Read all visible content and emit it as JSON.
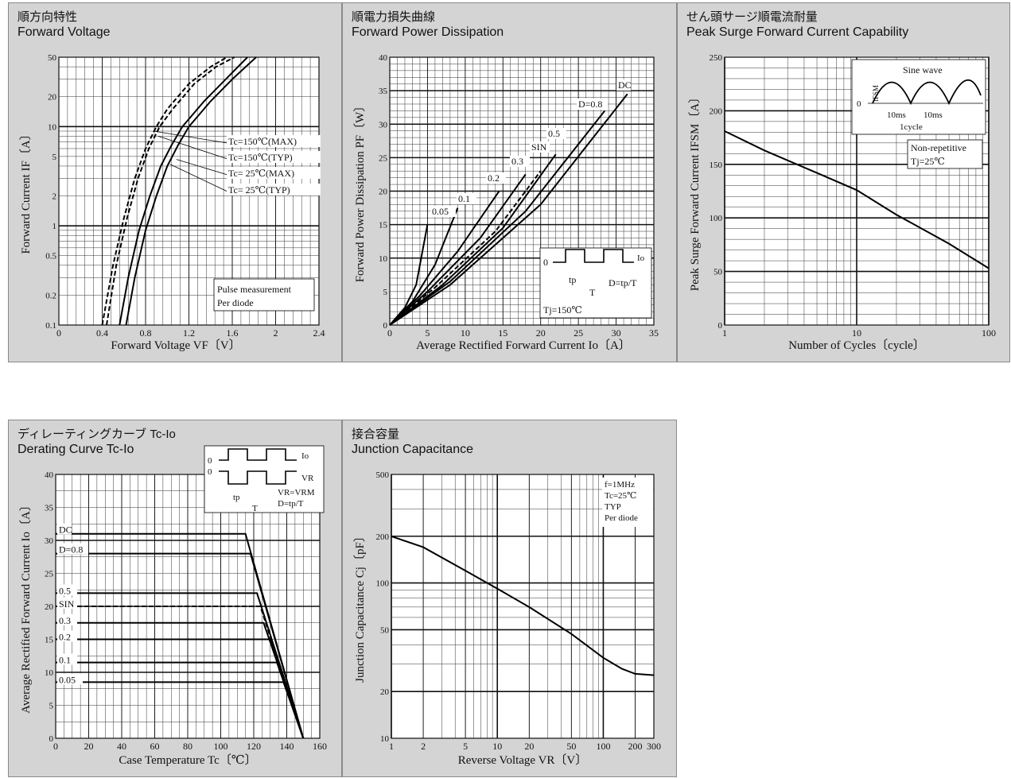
{
  "panels": [
    {
      "id": "fv",
      "title_jp": "順方向特性",
      "title_en": "Forward Voltage"
    },
    {
      "id": "fpd",
      "title_jp": "順電力損失曲線",
      "title_en": "Forward Power Dissipation"
    },
    {
      "id": "psf",
      "title_jp": "せん頭サージ順電流耐量",
      "title_en": "Peak Surge Forward Current Capability"
    },
    {
      "id": "der",
      "title_jp": "ディレーティングカーブ Tc-Io",
      "title_en": "Derating Curve Tc-Io"
    },
    {
      "id": "jc",
      "title_jp": "接合容量",
      "title_en": "Junction Capacitance"
    }
  ],
  "chart_data": [
    {
      "id": "fv",
      "type": "line",
      "xscale": "linear",
      "yscale": "log",
      "xlabel": "Forward Voltage  VF〔V〕",
      "ylabel": "Forward Current  IF〔A〕",
      "xlim": [
        0,
        2.4
      ],
      "ylim": [
        0.1,
        50
      ],
      "xticks": [
        0,
        0.4,
        0.8,
        1.2,
        1.6,
        2,
        2.4
      ],
      "xtick_labels": [
        "0",
        "0.4",
        "0.8",
        "1.2",
        "1.6",
        "2",
        "2.4"
      ],
      "yticks": [
        0.1,
        0.2,
        0.5,
        1,
        2,
        5,
        10,
        20,
        50
      ],
      "ytick_labels": [
        "0.1",
        "0.2",
        "0.5",
        "1",
        "2",
        "5",
        "10",
        "20",
        "50"
      ],
      "series": [
        {
          "name": "Tc=150℃(MAX)",
          "dash": true,
          "points": [
            [
              0.4,
              0.1
            ],
            [
              0.5,
              0.4
            ],
            [
              0.6,
              1.2
            ],
            [
              0.7,
              3
            ],
            [
              0.8,
              6
            ],
            [
              0.9,
              10
            ],
            [
              1.0,
              15
            ],
            [
              1.2,
              27
            ],
            [
              1.4,
              40
            ],
            [
              1.55,
              50
            ]
          ]
        },
        {
          "name": "Tc=150℃(TYP)",
          "dash": true,
          "points": [
            [
              0.44,
              0.1
            ],
            [
              0.53,
              0.4
            ],
            [
              0.63,
              1.2
            ],
            [
              0.73,
              3
            ],
            [
              0.83,
              6
            ],
            [
              0.93,
              10
            ],
            [
              1.05,
              15
            ],
            [
              1.25,
              27
            ],
            [
              1.45,
              40
            ],
            [
              1.62,
              50
            ]
          ]
        },
        {
          "name": "Tc= 25℃(MAX)",
          "dash": false,
          "points": [
            [
              0.62,
              0.1
            ],
            [
              0.7,
              0.3
            ],
            [
              0.8,
              0.9
            ],
            [
              0.9,
              2
            ],
            [
              1.0,
              4
            ],
            [
              1.1,
              6.5
            ],
            [
              1.2,
              10
            ],
            [
              1.4,
              18
            ],
            [
              1.6,
              30
            ],
            [
              1.82,
              50
            ]
          ]
        },
        {
          "name": "Tc= 25℃(TYP)",
          "dash": false,
          "points": [
            [
              0.56,
              0.1
            ],
            [
              0.64,
              0.3
            ],
            [
              0.74,
              0.9
            ],
            [
              0.84,
              2
            ],
            [
              0.94,
              4
            ],
            [
              1.04,
              6.5
            ],
            [
              1.14,
              10
            ],
            [
              1.34,
              18
            ],
            [
              1.54,
              30
            ],
            [
              1.74,
              50
            ]
          ]
        }
      ],
      "legend_note": [
        "Pulse measurement",
        "Per diode"
      ]
    },
    {
      "id": "fpd",
      "type": "line",
      "xscale": "linear",
      "yscale": "linear",
      "xlabel": "Average Rectified Forward Current  Io〔A〕",
      "ylabel": "Forward Power Dissipation  PF〔W〕",
      "xlim": [
        0,
        35
      ],
      "ylim": [
        0,
        40
      ],
      "xticks": [
        0,
        5,
        10,
        15,
        20,
        25,
        30,
        35
      ],
      "xtick_labels": [
        "0",
        "5",
        "10",
        "15",
        "20",
        "25",
        "30",
        "35"
      ],
      "yticks": [
        0,
        5,
        10,
        15,
        20,
        25,
        30,
        35,
        40
      ],
      "ytick_labels": [
        "0",
        "5",
        "10",
        "15",
        "20",
        "25",
        "30",
        "35",
        "40"
      ],
      "series": [
        {
          "name": "0.05",
          "points": [
            [
              0,
              0
            ],
            [
              2,
              2.6
            ],
            [
              3.5,
              6
            ],
            [
              5,
              15
            ]
          ]
        },
        {
          "name": "0.1",
          "points": [
            [
              0,
              0
            ],
            [
              3,
              3.5
            ],
            [
              6,
              9
            ],
            [
              9,
              17.5
            ]
          ]
        },
        {
          "name": "0.2",
          "points": [
            [
              0,
              0
            ],
            [
              4,
              4.4
            ],
            [
              9,
              11
            ],
            [
              14.5,
              20
            ]
          ]
        },
        {
          "name": "0.3",
          "points": [
            [
              0,
              0
            ],
            [
              5,
              5
            ],
            [
              12,
              13
            ],
            [
              18,
              22.5
            ]
          ]
        },
        {
          "name": "SIN",
          "dash": true,
          "points": [
            [
              0,
              0
            ],
            [
              6,
              5.6
            ],
            [
              14,
              14
            ],
            [
              20,
              23
            ]
          ]
        },
        {
          "name": "0.5",
          "points": [
            [
              0,
              0
            ],
            [
              7,
              6
            ],
            [
              15,
              14.5
            ],
            [
              22,
              25.5
            ]
          ]
        },
        {
          "name": "D=0.8",
          "points": [
            [
              0,
              0
            ],
            [
              8,
              6.5
            ],
            [
              18,
              17
            ],
            [
              28.5,
              32
            ]
          ]
        },
        {
          "name": "DC",
          "points": [
            [
              0,
              0
            ],
            [
              8,
              6
            ],
            [
              20,
              18
            ],
            [
              31.5,
              34.5
            ]
          ]
        }
      ],
      "inset": {
        "labels": [
          "0",
          "Io",
          "tp",
          "T",
          "D=tp/T",
          "Tj=150℃"
        ]
      }
    },
    {
      "id": "psf",
      "type": "line",
      "xscale": "log",
      "yscale": "linear",
      "xlabel": "Number of Cycles〔cycle〕",
      "ylabel": "Peak Surge Forward Current  IFSM〔A〕",
      "xlim": [
        1,
        100
      ],
      "ylim": [
        0,
        250
      ],
      "xticks": [
        1,
        10,
        100
      ],
      "xtick_labels": [
        "1",
        "10",
        "100"
      ],
      "yticks": [
        0,
        50,
        100,
        150,
        200,
        250
      ],
      "ytick_labels": [
        "0",
        "50",
        "100",
        "150",
        "200",
        "250"
      ],
      "series": [
        {
          "name": "",
          "points": [
            [
              1,
              181
            ],
            [
              2,
              163
            ],
            [
              5,
              142
            ],
            [
              10,
              126
            ],
            [
              20,
              103
            ],
            [
              50,
              76
            ],
            [
              100,
              53
            ]
          ]
        }
      ],
      "inset": {
        "labels": [
          "Sine wave",
          "IFSM",
          "0",
          "10ms",
          "10ms",
          "1cycle"
        ]
      },
      "note": [
        "Non-repetitive",
        "Tj=25℃"
      ]
    },
    {
      "id": "der",
      "type": "line",
      "xscale": "linear",
      "yscale": "linear",
      "xlabel": "Case Temperature  Tc〔℃〕",
      "ylabel": "Average Rectified Forward Current  Io〔A〕",
      "xlim": [
        0,
        160
      ],
      "ylim": [
        0,
        40
      ],
      "xticks": [
        0,
        20,
        40,
        60,
        80,
        100,
        120,
        140,
        160
      ],
      "xtick_labels": [
        "0",
        "20",
        "40",
        "60",
        "80",
        "100",
        "120",
        "140",
        "160"
      ],
      "yticks": [
        0,
        5,
        10,
        15,
        20,
        25,
        30,
        35,
        40
      ],
      "ytick_labels": [
        "0",
        "5",
        "10",
        "15",
        "20",
        "25",
        "30",
        "35",
        "40"
      ],
      "series": [
        {
          "name": "DC",
          "points": [
            [
              0,
              31
            ],
            [
              115,
              31
            ],
            [
              150,
              0
            ]
          ]
        },
        {
          "name": "D=0.8",
          "points": [
            [
              0,
              28
            ],
            [
              118,
              28
            ],
            [
              150,
              0
            ]
          ]
        },
        {
          "name": "0.5",
          "points": [
            [
              0,
              22
            ],
            [
              122,
              22
            ],
            [
              150,
              0
            ]
          ]
        },
        {
          "name": "SIN",
          "dash": true,
          "points": [
            [
              0,
              20
            ],
            [
              124,
              20
            ],
            [
              150,
              0
            ]
          ]
        },
        {
          "name": "0.3",
          "points": [
            [
              0,
              17.5
            ],
            [
              126,
              17.5
            ],
            [
              150,
              0
            ]
          ]
        },
        {
          "name": "0.2",
          "points": [
            [
              0,
              15
            ],
            [
              130,
              15
            ],
            [
              150,
              0
            ]
          ]
        },
        {
          "name": "0.1",
          "points": [
            [
              0,
              11.5
            ],
            [
              134,
              11.5
            ],
            [
              150,
              0
            ]
          ]
        },
        {
          "name": "0.05",
          "points": [
            [
              0,
              8.5
            ],
            [
              138,
              8.5
            ],
            [
              150,
              0
            ]
          ]
        }
      ],
      "inset": {
        "labels": [
          "0",
          "Io",
          "0",
          "VR",
          "VR=VRM",
          "tp",
          "T",
          "D=tp/T"
        ]
      }
    },
    {
      "id": "jc",
      "type": "line",
      "xscale": "log",
      "yscale": "log",
      "xlabel": "Reverse Voltage  VR〔V〕",
      "ylabel": "Junction Capacitance  Cj〔pF〕",
      "xlim": [
        1,
        300
      ],
      "ylim": [
        10,
        500
      ],
      "xticks": [
        1,
        2,
        5,
        10,
        20,
        50,
        100,
        200,
        300
      ],
      "xtick_labels": [
        "1",
        "2",
        "5",
        "10",
        "20",
        "50",
        "100",
        "200",
        "300"
      ],
      "yticks": [
        10,
        20,
        50,
        100,
        200,
        500
      ],
      "ytick_labels": [
        "10",
        "20",
        "50",
        "100",
        "200",
        "500"
      ],
      "series": [
        {
          "name": "",
          "points": [
            [
              1,
              200
            ],
            [
              2,
              170
            ],
            [
              5,
              120
            ],
            [
              10,
              92
            ],
            [
              20,
              70
            ],
            [
              50,
              47
            ],
            [
              100,
              33
            ],
            [
              150,
              28
            ],
            [
              200,
              26
            ],
            [
              300,
              25.5
            ]
          ]
        }
      ],
      "note": [
        "f=1MHz",
        "Tc=25℃",
        "TYP",
        "Per diode"
      ]
    }
  ]
}
